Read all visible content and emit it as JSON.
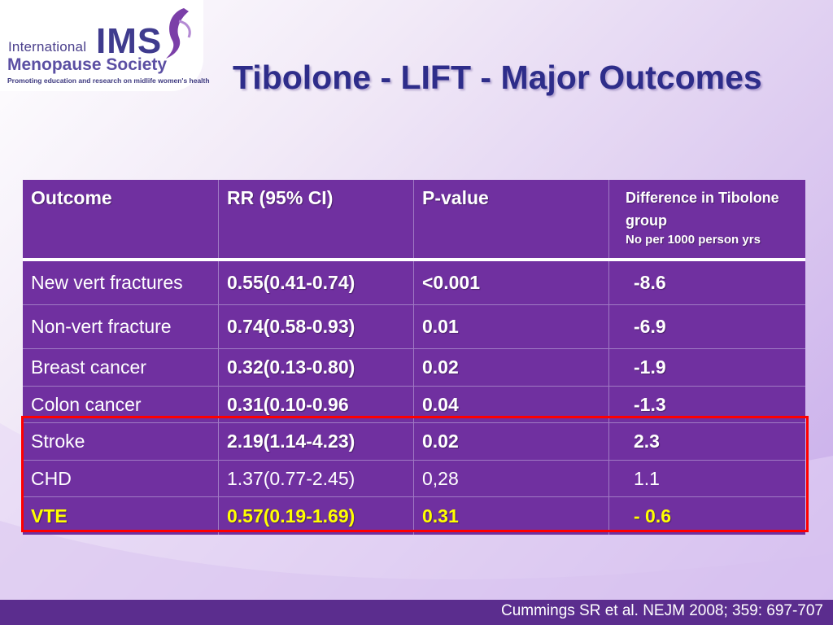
{
  "logo": {
    "line1": "International",
    "mark": "IMS",
    "line2": "Menopause Society",
    "tagline": "Promoting education and research on midlife women's health"
  },
  "title": "Tibolone - LIFT - Major Outcomes",
  "table": {
    "headers": {
      "outcome": "Outcome",
      "rr": "RR (95% CI)",
      "p": "P-value",
      "diff_line1": "Difference in  Tibolone group",
      "diff_line2": "No per 1000 person yrs"
    },
    "rows": [
      {
        "outcome": "New vert fractures",
        "rr": "0.55(0.41-0.74)",
        "p": "<0.001",
        "diff": "-8.6"
      },
      {
        "outcome": "Non-vert fracture",
        "rr": "0.74(0.58-0.93)",
        "p": "0.01",
        "diff": "-6.9"
      },
      {
        "outcome": "Breast cancer",
        "rr": "0.32(0.13-0.80)",
        "p": "0.02",
        "diff": "-1.9"
      },
      {
        "outcome": "Colon cancer",
        "rr": "0.31(0.10-0.96",
        "p": "0.04",
        "diff": "-1.3"
      },
      {
        "outcome": "Stroke",
        "rr": "2.19(1.14-4.23)",
        "p": "0.02",
        "diff": "2.3"
      },
      {
        "outcome": "CHD",
        "rr": "1.37(0.77-2.45)",
        "p": "0,28",
        "diff": "1.1"
      },
      {
        "outcome": "VTE",
        "rr": "0.57(0.19-1.69)",
        "p": "0.31",
        "diff": "- 0.6"
      }
    ]
  },
  "colors": {
    "table_bg": "#7030a0",
    "highlight_border": "#ff0000",
    "vte_text": "#ffff00",
    "title": "#2e2d8a",
    "footer_bar": "#5b2d8e"
  },
  "citation": "Cummings SR et al. NEJM 2008; 359: 697-707"
}
